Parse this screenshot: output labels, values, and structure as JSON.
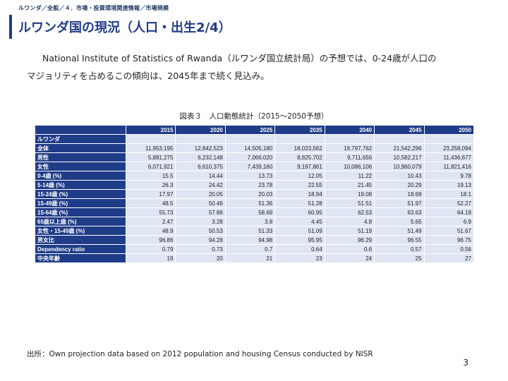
{
  "breadcrumb": "ルワンダ／全般／４．市場・投資環境関連情報／市場規模",
  "title": "ルワンダ国の現況（人口・出生2/4）",
  "body": {
    "line1": "National Institute of Statistics of Rwanda（ルワンダ国立統計局）の予想では、0-24歳が人口の",
    "line2": "マジョリティを占めるこの傾向は、2045年まで続く見込み。"
  },
  "caption": "図表３　人口動態統計（2015～2050予想）",
  "table": {
    "columns": [
      "2015",
      "2020",
      "2025",
      "2035",
      "2040",
      "2045",
      "2050"
    ],
    "rows": [
      {
        "label": "ルワンダ",
        "values": [
          "",
          "",
          "",
          "",
          "",
          "",
          ""
        ]
      },
      {
        "label": "全体",
        "values": [
          "11,953,195",
          "12,842,523",
          "14,505,180",
          "18,023,562",
          "19,797,762",
          "21,542,296",
          "23,258,094"
        ]
      },
      {
        "label": "男性",
        "values": [
          "5,881,275",
          "6,232,148",
          "7,066,020",
          "8,825,702",
          "9,711,656",
          "10,582,217",
          "11,436,677"
        ]
      },
      {
        "label": "女性",
        "values": [
          "6,071,921",
          "6,610,375",
          "7,439,160",
          "9,197,861",
          "10,086,106",
          "10,960,079",
          "11,821,416"
        ]
      },
      {
        "label": "0-4歳 (%)",
        "values": [
          "15.5",
          "14.44",
          "13.73",
          "12.05",
          "11.22",
          "10.43",
          "9.78"
        ]
      },
      {
        "label": "5-14歳 (%)",
        "values": [
          "26.3",
          "24.42",
          "23.78",
          "22.55",
          "21.45",
          "20.29",
          "19.13"
        ]
      },
      {
        "label": "15-24歳 (%)",
        "values": [
          "17.97",
          "20.05",
          "20.03",
          "18.94",
          "19.08",
          "18.69",
          "18.1"
        ]
      },
      {
        "label": "15-49歳 (%)",
        "values": [
          "48.5",
          "50.46",
          "51.36",
          "51.28",
          "51.51",
          "51.97",
          "52.27"
        ]
      },
      {
        "label": "15-64歳 (%)",
        "values": [
          "55.73",
          "57.86",
          "58.69",
          "60.95",
          "62.53",
          "63.63",
          "64.19"
        ]
      },
      {
        "label": "65歳以上歳 (%)",
        "values": [
          "2.47",
          "3.28",
          "3.8",
          "4.45",
          "4.8",
          "5.65",
          "6.9"
        ]
      },
      {
        "label": "女性・15-49歳 (%)",
        "values": [
          "48.9",
          "50.53",
          "51.33",
          "51.09",
          "51.19",
          "51.49",
          "51.67"
        ]
      },
      {
        "label": "男女比",
        "values": [
          "96.86",
          "94.28",
          "94.98",
          "95.95",
          "96.29",
          "96.55",
          "96.75"
        ]
      },
      {
        "label": "Dependency ratio",
        "values": [
          "0.79",
          "0.73",
          "0.7",
          "0.64",
          "0.6",
          "0.57",
          "0.56"
        ]
      },
      {
        "label": "中央年齢",
        "values": [
          "19",
          "20",
          "21",
          "23",
          "24",
          "25",
          "27"
        ]
      }
    ]
  },
  "source": "出所：Own projection data based on 2012 population and housing Census conducted by NISR",
  "page_number": "3"
}
